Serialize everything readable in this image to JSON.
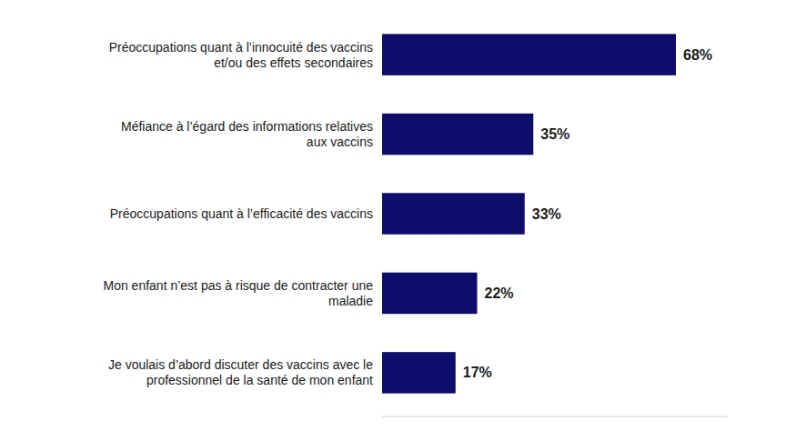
{
  "chart_data": {
    "type": "bar",
    "orientation": "horizontal",
    "categories": [
      "Je voulais d’abord discuter des vaccins avec le\nprofessionnel de la santé de mon enfant",
      "Mon enfant n’est pas à risque de contracter une\nmaladie",
      "Préoccupations quant à l’efficacité des vaccins",
      "Méfiance à l’égard des informations relatives\naux vaccins",
      "Préoccupations quant à l’innocuité des vaccins\net/ou des effets secondaires"
    ],
    "values": [
      17,
      22,
      33,
      35,
      68
    ],
    "value_labels": [
      "17%",
      "22%",
      "33%",
      "35%",
      "68%"
    ],
    "color": "#0d0d6b",
    "xlim": [
      0,
      80
    ],
    "data_labels": true,
    "grid": false,
    "tick_labels": "y"
  }
}
